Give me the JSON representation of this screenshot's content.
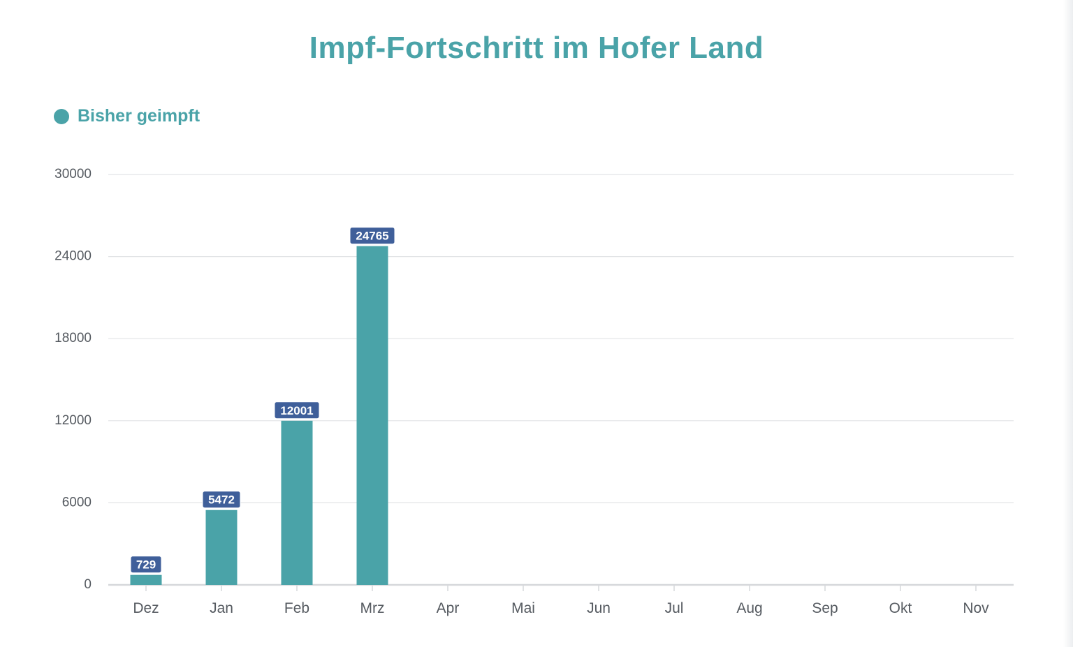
{
  "chart_data": {
    "type": "bar",
    "title": "Impf-Fortschritt im Hofer Land",
    "categories": [
      "Dez",
      "Jan",
      "Feb",
      "Mrz",
      "Apr",
      "Mai",
      "Jun",
      "Jul",
      "Aug",
      "Sep",
      "Okt",
      "Nov"
    ],
    "series": [
      {
        "name": "Bisher geimpft",
        "values": [
          729,
          5472,
          12001,
          24765,
          null,
          null,
          null,
          null,
          null,
          null,
          null,
          null
        ],
        "color": "#4aa3a8"
      }
    ],
    "yticks": [
      0,
      6000,
      12000,
      18000,
      24000,
      30000
    ],
    "ylim": [
      0,
      30000
    ],
    "xlabel": "",
    "ylabel": "",
    "grid": true,
    "legend": "top-left",
    "label_bg_color": "#3f5f9a"
  }
}
